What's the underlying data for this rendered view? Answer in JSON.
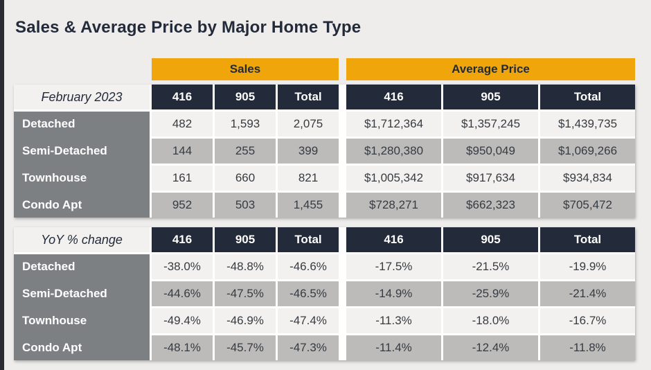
{
  "title": "Sales & Average Price by Major Home Type",
  "groups": {
    "sales": "Sales",
    "avg_price": "Average Price"
  },
  "col_headers": [
    "416",
    "905",
    "Total"
  ],
  "tables": [
    {
      "header": "February 2023",
      "rows": [
        {
          "label": "Detached",
          "sales": [
            "482",
            "1,593",
            "2,075"
          ],
          "avg": [
            "$1,712,364",
            "$1,357,245",
            "$1,439,735"
          ]
        },
        {
          "label": "Semi-Detached",
          "sales": [
            "144",
            "255",
            "399"
          ],
          "avg": [
            "$1,280,380",
            "$950,049",
            "$1,069,266"
          ]
        },
        {
          "label": "Townhouse",
          "sales": [
            "161",
            "660",
            "821"
          ],
          "avg": [
            "$1,005,342",
            "$917,634",
            "$934,834"
          ]
        },
        {
          "label": "Condo Apt",
          "sales": [
            "952",
            "503",
            "1,455"
          ],
          "avg": [
            "$728,271",
            "$662,323",
            "$705,472"
          ]
        }
      ]
    },
    {
      "header": "YoY % change",
      "rows": [
        {
          "label": "Detached",
          "sales": [
            "-38.0%",
            "-48.8%",
            "-46.6%"
          ],
          "avg": [
            "-17.5%",
            "-21.5%",
            "-19.9%"
          ]
        },
        {
          "label": "Semi-Detached",
          "sales": [
            "-44.6%",
            "-47.5%",
            "-46.5%"
          ],
          "avg": [
            "-14.9%",
            "-25.9%",
            "-21.4%"
          ]
        },
        {
          "label": "Townhouse",
          "sales": [
            "-49.4%",
            "-46.9%",
            "-47.4%"
          ],
          "avg": [
            "-11.3%",
            "-18.0%",
            "-16.7%"
          ]
        },
        {
          "label": "Condo Apt",
          "sales": [
            "-48.1%",
            "-45.7%",
            "-47.3%"
          ],
          "avg": [
            "-11.4%",
            "-12.4%",
            "-11.8%"
          ]
        }
      ]
    }
  ],
  "colors": {
    "accent_amber": "#F0A50A",
    "header_navy": "#232B3A",
    "row_label_gray": "#7D8083",
    "row_light": "#F2F1EF",
    "row_shaded": "#BCBBB9",
    "page_background": "#EEEDEB",
    "edge_bar": "#2B2C33"
  },
  "chart_data": {
    "type": "table",
    "title": "Sales & Average Price by Major Home Type",
    "column_groups": [
      "Sales",
      "Average Price"
    ],
    "columns": [
      "Sales 416",
      "Sales 905",
      "Sales Total",
      "Avg Price 416",
      "Avg Price 905",
      "Avg Price Total"
    ],
    "sections": [
      {
        "name": "February 2023",
        "rows": [
          [
            "Detached",
            482,
            1593,
            2075,
            1712364,
            1357245,
            1439735
          ],
          [
            "Semi-Detached",
            144,
            255,
            399,
            1280380,
            950049,
            1069266
          ],
          [
            "Townhouse",
            161,
            660,
            821,
            1005342,
            917634,
            934834
          ],
          [
            "Condo Apt",
            952,
            503,
            1455,
            728271,
            662323,
            705472
          ]
        ]
      },
      {
        "name": "YoY % change",
        "rows": [
          [
            "Detached",
            -38.0,
            -48.8,
            -46.6,
            -17.5,
            -21.5,
            -19.9
          ],
          [
            "Semi-Detached",
            -44.6,
            -47.5,
            -46.5,
            -14.9,
            -25.9,
            -21.4
          ],
          [
            "Townhouse",
            -49.4,
            -46.9,
            -47.4,
            -11.3,
            -18.0,
            -16.7
          ],
          [
            "Condo Apt",
            -48.1,
            -45.7,
            -47.3,
            -11.4,
            -12.4,
            -11.8
          ]
        ]
      }
    ]
  }
}
